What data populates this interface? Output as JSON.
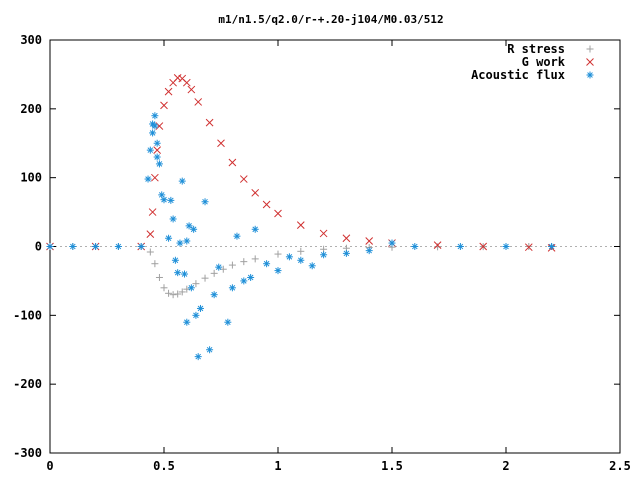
{
  "chart_data": {
    "type": "scatter",
    "title": "m1/n1.5/q2.0/r-+.20-j104/M0.03/512",
    "xlabel": "",
    "ylabel": "",
    "xlim": [
      0,
      2.5
    ],
    "ylim": [
      -300,
      300
    ],
    "x_ticks": [
      {
        "value": 0,
        "label": "0"
      },
      {
        "value": 0.5,
        "label": "0.5"
      },
      {
        "value": 1,
        "label": "1"
      },
      {
        "value": 1.5,
        "label": "1.5"
      },
      {
        "value": 2,
        "label": "2"
      },
      {
        "value": 2.5,
        "label": "2.5"
      }
    ],
    "y_ticks": [
      {
        "value": -300,
        "label": "-300"
      },
      {
        "value": -200,
        "label": "-200"
      },
      {
        "value": -100,
        "label": "-100"
      },
      {
        "value": 0,
        "label": "0"
      },
      {
        "value": 100,
        "label": "100"
      },
      {
        "value": 200,
        "label": "200"
      },
      {
        "value": 300,
        "label": "300"
      }
    ],
    "grid": false,
    "legend_position": "top-right",
    "series": [
      {
        "name": "R stress",
        "marker": "plus",
        "color": "#a0a0a0",
        "x": [
          0.0,
          0.1,
          0.2,
          0.3,
          0.4,
          0.44,
          0.46,
          0.48,
          0.5,
          0.52,
          0.54,
          0.56,
          0.58,
          0.6,
          0.64,
          0.68,
          0.72,
          0.76,
          0.8,
          0.85,
          0.9,
          1.0,
          1.1,
          1.2,
          1.3,
          1.4,
          1.5,
          1.7,
          1.9,
          2.1,
          2.2
        ],
        "y": [
          0,
          0,
          0,
          0,
          0,
          -8,
          -25,
          -45,
          -60,
          -68,
          -70,
          -69,
          -66,
          -62,
          -54,
          -46,
          -39,
          -33,
          -27,
          -22,
          -18,
          -11,
          -7,
          -4,
          -2.5,
          -1.5,
          -1,
          -0.5,
          -0.2,
          0,
          0
        ]
      },
      {
        "name": "G work",
        "marker": "x",
        "color": "#d03030",
        "x": [
          0.0,
          0.2,
          0.4,
          0.44,
          0.45,
          0.46,
          0.47,
          0.48,
          0.5,
          0.52,
          0.54,
          0.56,
          0.58,
          0.6,
          0.62,
          0.65,
          0.7,
          0.75,
          0.8,
          0.85,
          0.9,
          0.95,
          1.0,
          1.1,
          1.2,
          1.3,
          1.4,
          1.5,
          1.7,
          1.9,
          2.1,
          2.2
        ],
        "y": [
          0,
          0,
          0,
          18,
          50,
          100,
          140,
          175,
          205,
          225,
          238,
          245,
          244,
          238,
          228,
          210,
          180,
          150,
          122,
          98,
          78,
          61,
          48,
          31,
          19,
          12,
          8,
          5,
          2,
          0,
          -1,
          -2
        ]
      },
      {
        "name": "Acoustic flux",
        "marker": "star",
        "color": "#1e8fd8",
        "x": [
          0.0,
          0.1,
          0.2,
          0.3,
          0.4,
          0.43,
          0.44,
          0.45,
          0.45,
          0.46,
          0.46,
          0.47,
          0.47,
          0.48,
          0.49,
          0.5,
          0.52,
          0.53,
          0.54,
          0.55,
          0.56,
          0.57,
          0.58,
          0.59,
          0.6,
          0.6,
          0.61,
          0.62,
          0.63,
          0.64,
          0.65,
          0.66,
          0.68,
          0.7,
          0.72,
          0.74,
          0.78,
          0.8,
          0.82,
          0.85,
          0.88,
          0.9,
          0.95,
          1.0,
          1.05,
          1.1,
          1.15,
          1.2,
          1.3,
          1.4,
          1.5,
          1.6,
          1.8,
          2.0,
          2.2
        ],
        "y": [
          0,
          0,
          0,
          0,
          0,
          98,
          140,
          178,
          165,
          190,
          175,
          150,
          130,
          120,
          75,
          68,
          12,
          67,
          40,
          -20,
          -38,
          5,
          95,
          -40,
          -110,
          8,
          30,
          -60,
          25,
          -100,
          -160,
          -90,
          65,
          -150,
          -70,
          -30,
          -110,
          -60,
          15,
          -50,
          -45,
          25,
          -25,
          -35,
          -15,
          -20,
          -28,
          -12,
          -10,
          -6,
          5,
          0,
          0,
          0,
          0
        ]
      }
    ]
  }
}
